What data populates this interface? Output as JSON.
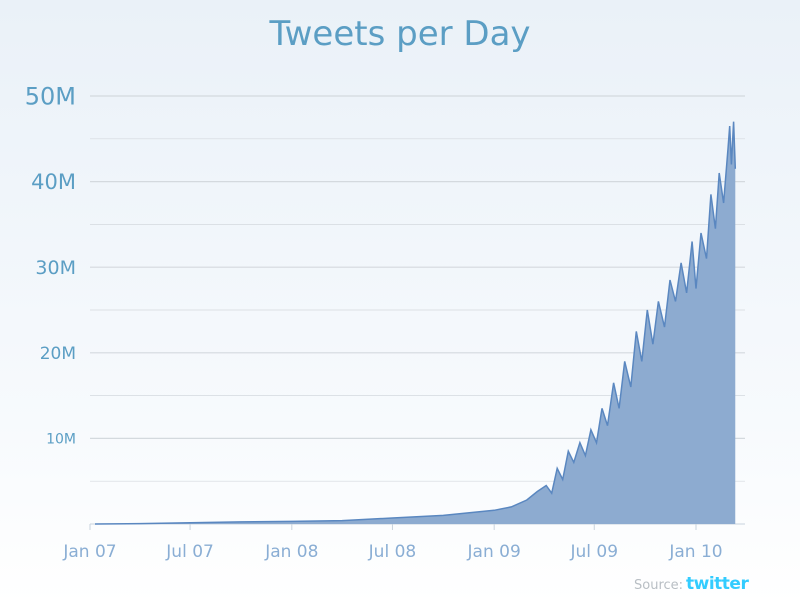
{
  "chart_data": {
    "type": "area",
    "title": "Tweets per Day",
    "xlabel": "",
    "ylabel": "",
    "ylim": [
      0,
      50000000
    ],
    "xlim": [
      "2007-01-01",
      "2010-04-10"
    ],
    "grid": true,
    "y_ticks": [
      {
        "value": 10000000,
        "label": "10M"
      },
      {
        "value": 20000000,
        "label": "20M"
      },
      {
        "value": 30000000,
        "label": "30M"
      },
      {
        "value": 40000000,
        "label": "40M"
      },
      {
        "value": 50000000,
        "label": "50M"
      }
    ],
    "x_ticks": [
      {
        "date": "2007-01-01",
        "label": "Jan 07"
      },
      {
        "date": "2007-07-01",
        "label": "Jul 07"
      },
      {
        "date": "2008-01-01",
        "label": "Jan 08"
      },
      {
        "date": "2008-07-01",
        "label": "Jul 08"
      },
      {
        "date": "2009-01-01",
        "label": "Jan 09"
      },
      {
        "date": "2009-07-01",
        "label": "Jul 09"
      },
      {
        "date": "2010-01-01",
        "label": "Jan 10"
      }
    ],
    "points": [
      [
        "2007-01-10",
        5000
      ],
      [
        "2007-04-01",
        50000
      ],
      [
        "2007-07-01",
        150000
      ],
      [
        "2007-10-01",
        250000
      ],
      [
        "2008-01-01",
        300000
      ],
      [
        "2008-04-01",
        400000
      ],
      [
        "2008-07-01",
        700000
      ],
      [
        "2008-10-01",
        1000000
      ],
      [
        "2009-01-01",
        1600000
      ],
      [
        "2009-02-01",
        2000000
      ],
      [
        "2009-03-01",
        2800000
      ],
      [
        "2009-03-20",
        3800000
      ],
      [
        "2009-04-05",
        4500000
      ],
      [
        "2009-04-15",
        3600000
      ],
      [
        "2009-04-25",
        6500000
      ],
      [
        "2009-05-05",
        5200000
      ],
      [
        "2009-05-15",
        8500000
      ],
      [
        "2009-05-25",
        7200000
      ],
      [
        "2009-06-05",
        9500000
      ],
      [
        "2009-06-15",
        8000000
      ],
      [
        "2009-06-25",
        11000000
      ],
      [
        "2009-07-05",
        9500000
      ],
      [
        "2009-07-15",
        13500000
      ],
      [
        "2009-07-25",
        11500000
      ],
      [
        "2009-08-05",
        16500000
      ],
      [
        "2009-08-15",
        13500000
      ],
      [
        "2009-08-25",
        19000000
      ],
      [
        "2009-09-05",
        16000000
      ],
      [
        "2009-09-15",
        22500000
      ],
      [
        "2009-09-25",
        19000000
      ],
      [
        "2009-10-05",
        25000000
      ],
      [
        "2009-10-15",
        21000000
      ],
      [
        "2009-10-25",
        26000000
      ],
      [
        "2009-11-05",
        23000000
      ],
      [
        "2009-11-15",
        28500000
      ],
      [
        "2009-11-25",
        26000000
      ],
      [
        "2009-12-05",
        30500000
      ],
      [
        "2009-12-15",
        27000000
      ],
      [
        "2009-12-25",
        33000000
      ],
      [
        "2010-01-01",
        27500000
      ],
      [
        "2010-01-10",
        34000000
      ],
      [
        "2010-01-20",
        31000000
      ],
      [
        "2010-01-28",
        38500000
      ],
      [
        "2010-02-05",
        34500000
      ],
      [
        "2010-02-12",
        41000000
      ],
      [
        "2010-02-20",
        37500000
      ],
      [
        "2010-02-28",
        44000000
      ],
      [
        "2010-03-03",
        46500000
      ],
      [
        "2010-03-06",
        42000000
      ],
      [
        "2010-03-10",
        47000000
      ],
      [
        "2010-03-13",
        41500000
      ]
    ],
    "colors": {
      "fill": "#8dabd0",
      "line": "#5a87c0",
      "title": "#5b9ec4",
      "y_labels": "#5b9ec4",
      "x_labels": "#8aaed4",
      "grid": "#d4d9de"
    }
  },
  "footer": {
    "source_label": "Source:",
    "source_logo": "twitter"
  }
}
